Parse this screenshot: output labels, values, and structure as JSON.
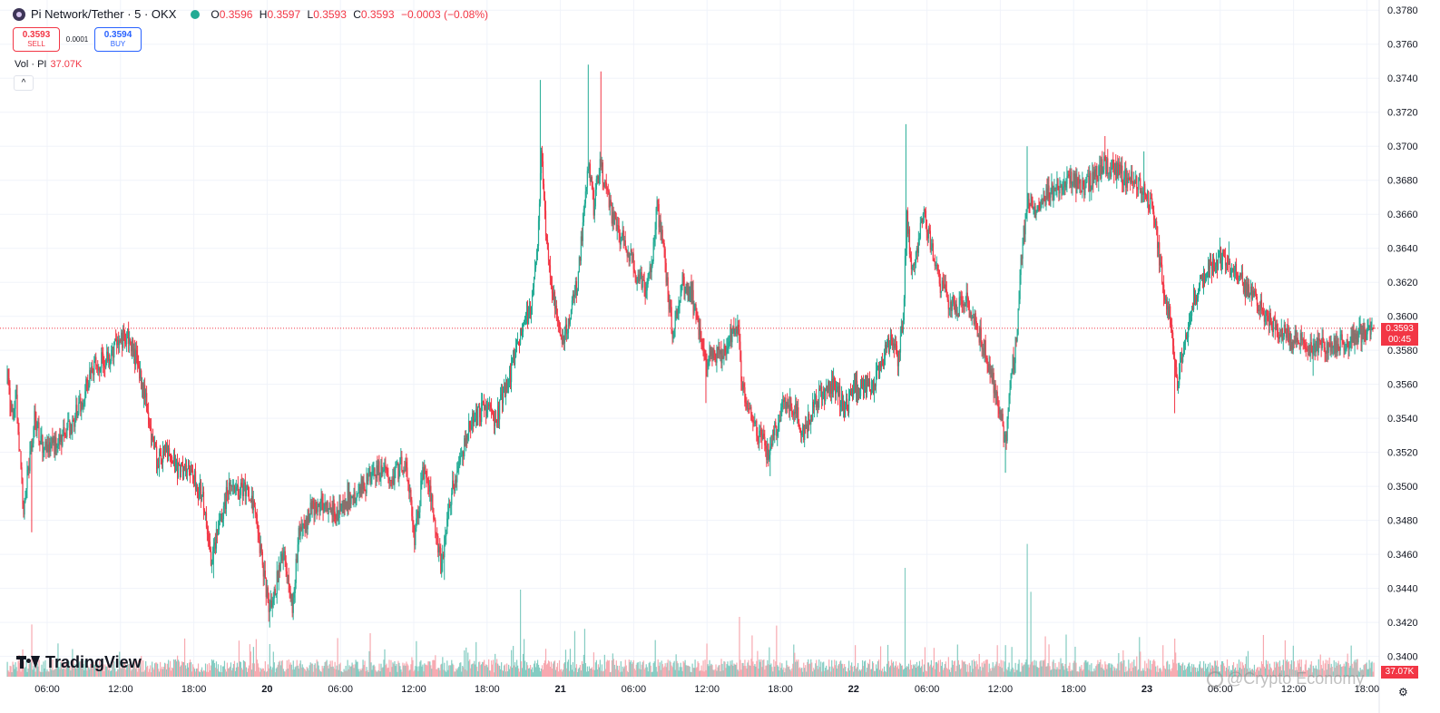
{
  "header": {
    "symbol_title": "Pi Network/Tether · 5 · OKX",
    "ohlc": {
      "o_label": "O",
      "o_value": "0.3596",
      "h_label": "H",
      "h_value": "0.3597",
      "l_label": "L",
      "l_value": "0.3593",
      "c_label": "C",
      "c_value": "0.3593",
      "change": "−0.0003 (−0.08%)"
    }
  },
  "trade": {
    "sell_price": "0.3593",
    "sell_label": "SELL",
    "spread": "0.0001",
    "buy_price": "0.3594",
    "buy_label": "BUY"
  },
  "volume_legend": {
    "name": "Vol · PI",
    "value": "37.07K"
  },
  "collapse_icon": "^",
  "price_tag": {
    "price": "0.3593",
    "countdown": "00:45"
  },
  "volume_tag": "37.07K",
  "branding": {
    "logo_text": "TradingView",
    "watermark": "@Crypto Economy"
  },
  "colors": {
    "up": "#22ab94",
    "down": "#f23645",
    "up_volume": "#84ccc2",
    "down_volume": "#f7a9b0",
    "grid": "#f0f3fa",
    "price_line": "#f23645"
  },
  "chart_data": {
    "type": "candlestick",
    "symbol": "Pi Network/Tether",
    "interval": "5",
    "exchange": "OKX",
    "price_axis": {
      "ticks": [
        "0.3780",
        "0.3760",
        "0.3740",
        "0.3720",
        "0.3700",
        "0.3680",
        "0.3660",
        "0.3640",
        "0.3620",
        "0.3600",
        "0.3580",
        "0.3560",
        "0.3540",
        "0.3520",
        "0.3500",
        "0.3480",
        "0.3460",
        "0.3440",
        "0.3420",
        "0.3400"
      ],
      "ylim": [
        0.3387,
        0.3786
      ]
    },
    "time_axis": {
      "ticks": [
        "06:00",
        "12:00",
        "18:00",
        "20",
        "06:00",
        "12:00",
        "18:00",
        "21",
        "06:00",
        "12:00",
        "18:00",
        "22",
        "06:00",
        "12:00",
        "18:00",
        "23",
        "06:00",
        "12:00",
        "18:00"
      ]
    },
    "last_price": 0.3593,
    "price_path": [
      [
        0,
        0.3565
      ],
      [
        5,
        0.354
      ],
      [
        10,
        0.355
      ],
      [
        15,
        0.351
      ],
      [
        18,
        0.348
      ],
      [
        22,
        0.3505
      ],
      [
        30,
        0.354
      ],
      [
        40,
        0.352
      ],
      [
        55,
        0.3525
      ],
      [
        70,
        0.3535
      ],
      [
        85,
        0.3555
      ],
      [
        95,
        0.357
      ],
      [
        110,
        0.3575
      ],
      [
        125,
        0.3585
      ],
      [
        133,
        0.359
      ],
      [
        145,
        0.357
      ],
      [
        155,
        0.3545
      ],
      [
        165,
        0.3515
      ],
      [
        175,
        0.352
      ],
      [
        190,
        0.351
      ],
      [
        205,
        0.3505
      ],
      [
        215,
        0.3495
      ],
      [
        225,
        0.3455
      ],
      [
        235,
        0.348
      ],
      [
        245,
        0.35
      ],
      [
        255,
        0.3495
      ],
      [
        265,
        0.35
      ],
      [
        275,
        0.348
      ],
      [
        283,
        0.345
      ],
      [
        290,
        0.3425
      ],
      [
        298,
        0.3445
      ],
      [
        305,
        0.346
      ],
      [
        315,
        0.343
      ],
      [
        322,
        0.347
      ],
      [
        335,
        0.3485
      ],
      [
        350,
        0.349
      ],
      [
        365,
        0.3485
      ],
      [
        380,
        0.3495
      ],
      [
        395,
        0.35
      ],
      [
        410,
        0.351
      ],
      [
        425,
        0.3505
      ],
      [
        440,
        0.3515
      ],
      [
        450,
        0.347
      ],
      [
        460,
        0.351
      ],
      [
        470,
        0.349
      ],
      [
        480,
        0.345
      ],
      [
        488,
        0.349
      ],
      [
        498,
        0.351
      ],
      [
        510,
        0.3535
      ],
      [
        525,
        0.3545
      ],
      [
        540,
        0.354
      ],
      [
        555,
        0.3565
      ],
      [
        565,
        0.3585
      ],
      [
        578,
        0.3605
      ],
      [
        586,
        0.364
      ],
      [
        590,
        0.37
      ],
      [
        595,
        0.365
      ],
      [
        600,
        0.3625
      ],
      [
        607,
        0.36
      ],
      [
        615,
        0.3585
      ],
      [
        622,
        0.36
      ],
      [
        630,
        0.362
      ],
      [
        637,
        0.366
      ],
      [
        643,
        0.369
      ],
      [
        648,
        0.3665
      ],
      [
        655,
        0.369
      ],
      [
        660,
        0.368
      ],
      [
        668,
        0.366
      ],
      [
        675,
        0.365
      ],
      [
        685,
        0.364
      ],
      [
        695,
        0.3625
      ],
      [
        705,
        0.3615
      ],
      [
        712,
        0.363
      ],
      [
        718,
        0.3665
      ],
      [
        725,
        0.364
      ],
      [
        735,
        0.359
      ],
      [
        745,
        0.362
      ],
      [
        755,
        0.3615
      ],
      [
        765,
        0.359
      ],
      [
        772,
        0.3575
      ],
      [
        780,
        0.358
      ],
      [
        790,
        0.3575
      ],
      [
        800,
        0.359
      ],
      [
        807,
        0.3595
      ],
      [
        812,
        0.356
      ],
      [
        820,
        0.3545
      ],
      [
        830,
        0.353
      ],
      [
        840,
        0.352
      ],
      [
        850,
        0.3535
      ],
      [
        860,
        0.355
      ],
      [
        870,
        0.3545
      ],
      [
        880,
        0.353
      ],
      [
        890,
        0.3545
      ],
      [
        900,
        0.3555
      ],
      [
        915,
        0.356
      ],
      [
        925,
        0.3545
      ],
      [
        935,
        0.3555
      ],
      [
        945,
        0.356
      ],
      [
        955,
        0.3555
      ],
      [
        965,
        0.357
      ],
      [
        975,
        0.3585
      ],
      [
        985,
        0.3575
      ],
      [
        990,
        0.36
      ],
      [
        994,
        0.366
      ],
      [
        1000,
        0.3625
      ],
      [
        1005,
        0.364
      ],
      [
        1012,
        0.366
      ],
      [
        1020,
        0.3645
      ],
      [
        1030,
        0.362
      ],
      [
        1040,
        0.361
      ],
      [
        1050,
        0.3605
      ],
      [
        1060,
        0.361
      ],
      [
        1070,
        0.3595
      ],
      [
        1080,
        0.358
      ],
      [
        1090,
        0.356
      ],
      [
        1097,
        0.3545
      ],
      [
        1103,
        0.3525
      ],
      [
        1108,
        0.356
      ],
      [
        1115,
        0.3585
      ],
      [
        1120,
        0.363
      ],
      [
        1127,
        0.367
      ],
      [
        1135,
        0.3665
      ],
      [
        1145,
        0.367
      ],
      [
        1160,
        0.3675
      ],
      [
        1175,
        0.368
      ],
      [
        1190,
        0.3675
      ],
      [
        1205,
        0.3685
      ],
      [
        1215,
        0.369
      ],
      [
        1225,
        0.3685
      ],
      [
        1240,
        0.368
      ],
      [
        1255,
        0.3675
      ],
      [
        1265,
        0.3665
      ],
      [
        1272,
        0.364
      ],
      [
        1278,
        0.361
      ],
      [
        1285,
        0.36
      ],
      [
        1292,
        0.356
      ],
      [
        1300,
        0.358
      ],
      [
        1310,
        0.361
      ],
      [
        1320,
        0.362
      ],
      [
        1330,
        0.363
      ],
      [
        1340,
        0.3635
      ],
      [
        1350,
        0.363
      ],
      [
        1360,
        0.3625
      ],
      [
        1370,
        0.3615
      ],
      [
        1380,
        0.361
      ],
      [
        1390,
        0.36
      ],
      [
        1400,
        0.3595
      ],
      [
        1410,
        0.359
      ],
      [
        1420,
        0.3585
      ],
      [
        1430,
        0.359
      ],
      [
        1440,
        0.358
      ],
      [
        1450,
        0.3585
      ],
      [
        1460,
        0.358
      ],
      [
        1470,
        0.3585
      ],
      [
        1480,
        0.3583
      ],
      [
        1490,
        0.3588
      ],
      [
        1500,
        0.3592
      ],
      [
        1510,
        0.3593
      ]
    ],
    "wick_extremes": [
      {
        "i": 27,
        "low": 0.3473
      },
      {
        "i": 133,
        "high": 0.3593
      },
      {
        "i": 228,
        "low": 0.3446
      },
      {
        "i": 290,
        "low": 0.3417
      },
      {
        "i": 315,
        "low": 0.3423
      },
      {
        "i": 483,
        "low": 0.3445
      },
      {
        "i": 589,
        "high": 0.3739
      },
      {
        "i": 642,
        "high": 0.3748
      },
      {
        "i": 656,
        "high": 0.3744
      },
      {
        "i": 772,
        "low": 0.3549
      },
      {
        "i": 843,
        "low": 0.3506
      },
      {
        "i": 993,
        "high": 0.3713
      },
      {
        "i": 1103,
        "low": 0.3508
      },
      {
        "i": 1127,
        "high": 0.37
      },
      {
        "i": 1213,
        "high": 0.3706
      },
      {
        "i": 1256,
        "high": 0.3697
      },
      {
        "i": 1290,
        "low": 0.3543
      },
      {
        "i": 1350,
        "high": 0.3644
      },
      {
        "i": 1443,
        "low": 0.3565
      }
    ],
    "volume_spikes": [
      {
        "i": 27,
        "level": 0.48
      },
      {
        "i": 290,
        "level": 0.3
      },
      {
        "i": 567,
        "level": 0.8
      },
      {
        "i": 627,
        "level": 0.42
      },
      {
        "i": 638,
        "level": 0.44
      },
      {
        "i": 809,
        "level": 0.55
      },
      {
        "i": 850,
        "level": 0.47
      },
      {
        "i": 992,
        "level": 1.0
      },
      {
        "i": 1127,
        "level": 1.22
      },
      {
        "i": 1131,
        "level": 0.78
      },
      {
        "i": 1290,
        "level": 0.35
      }
    ]
  }
}
